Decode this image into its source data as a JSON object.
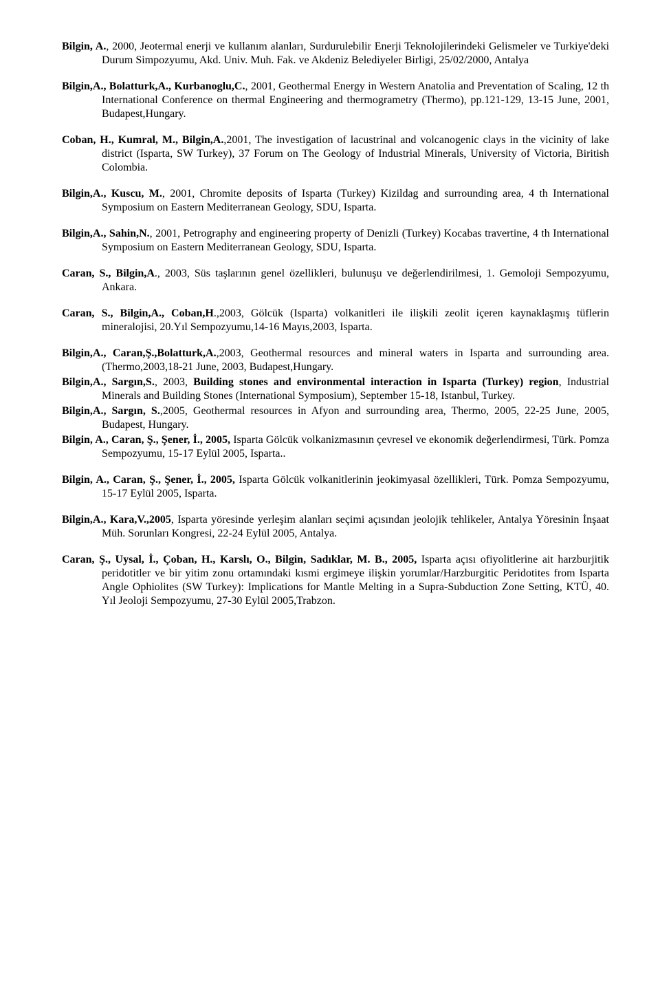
{
  "entries": [
    {
      "html": "<b>Bilgin, A.</b>, 2000, Jeotermal enerji ve kullanım alanları, Surdurulebilir Enerji Teknolojilerindeki Gelismeler ve Turkiye'deki Durum Simpozyumu, Akd. Univ. Muh. Fak. ve Akdeniz Belediyeler Birligi, 25/02/2000, Antalya"
    },
    {
      "html": "<b>Bilgin,A., Bolatturk,A., Kurbanoglu,C.</b>, 2001, Geothermal Energy in Western Anatolia and Preventation of Scaling, 12 th International Conference on thermal Engineering and thermogrametry (Thermo), pp.121-129, 13-15 June, 2001, Budapest,Hungary."
    },
    {
      "html": "<b>Coban, H., Kumral, M., Bilgin,A.</b>,2001, The investigation of lacustrinal and volcanogenic clays in the vicinity of lake district (Isparta, SW Turkey), 37 Forum on The Geology of Industrial Minerals, University of Victoria, Biritish Colombia."
    },
    {
      "html": "<b>Bilgin,A., Kuscu, M.</b>, 2001, Chromite deposits of Isparta (Turkey) Kizildag and surrounding area, 4 th International Symposium on Eastern Mediterranean Geology, SDU, Isparta."
    },
    {
      "html": "<b>Bilgin,A., Sahin,N.</b>, 2001, Petrography and engineering property of Denizli (Turkey) Kocabas travertine, 4 th International Symposium on Eastern Mediterranean Geology, SDU, Isparta."
    },
    {
      "html": "<b>Caran, S., Bilgin,A</b>., 2003, Süs taşlarının genel özellikleri, bulunuşu ve değerlendirilmesi, 1. Gemoloji Sempozyumu, Ankara."
    },
    {
      "html": "<b>Caran, S., Bilgin,A., Coban,H</b>.,2003, Gölcük (Isparta) volkanitleri ile ilişkili zeolit içeren kaynaklaşmış tüflerin mineralojisi, 20.Yıl Sempozyumu,14-16 Mayıs,2003, Isparta."
    },
    {
      "html": "<b>Bilgin,A., Caran,Ş.,Bolatturk,A.</b>,2003, Geothermal resources and mineral waters in Isparta and surrounding area. (Thermo,2003,18-21 June, 2003, Budapest,Hungary.",
      "tight": true
    },
    {
      "html": "<b>Bilgin,A., Sargın,S.</b>, 2003, <b>Building stones and environmental interaction in Isparta (Turkey) region</b>, Industrial Minerals and Building Stones (International Symposium), September 15-18, Istanbul, Turkey.",
      "tight": true
    },
    {
      "html": "<b>Bilgin,A., Sargın, S.</b>,2005, Geothermal resources in Afyon and surrounding area, Thermo, 2005, 22-25 June, 2005, Budapest, Hungary.",
      "tight": true
    },
    {
      "html": "<b>Bilgin, A., Caran, Ş., Şener, İ., 2005,</b> Isparta Gölcük volkanizmasının çevresel ve ekonomik değerlendirmesi, Türk. Pomza Sempozyumu, 15-17 Eylül 2005, Isparta.."
    },
    {
      "html": "<b>Bilgin, A., Caran, Ş., Şener, İ., 2005,</b> Isparta Gölcük volkanitlerinin jeokimyasal özellikleri, Türk. Pomza Sempozyumu, 15-17 Eylül 2005, Isparta."
    },
    {
      "html": "<b>Bilgin,A., Kara,V.,2005</b>, Isparta yöresinde yerleşim alanları seçimi açısından jeolojik tehlikeler, Antalya Yöresinin İnşaat Müh. Sorunları Kongresi, 22-24 Eylül 2005, Antalya."
    },
    {
      "html": "<b>Caran, Ş., Uysal, İ., Çoban, H., Karslı, O., Bilgin, Sadıklar, M. B., 2005,</b> Isparta açısı ofiyolitlerine ait harzburjitik peridotitler ve bir yitim zonu ortamındaki kısmi ergimeye ilişkin yorumlar/Harzburgitic Peridotites from Isparta Angle Ophiolites (SW Turkey): Implications for Mantle Melting in a Supra-Subduction Zone Setting, KTÜ, 40. Yıl Jeoloji Sempozyumu, 27-30 Eylül 2005,Trabzon."
    }
  ]
}
